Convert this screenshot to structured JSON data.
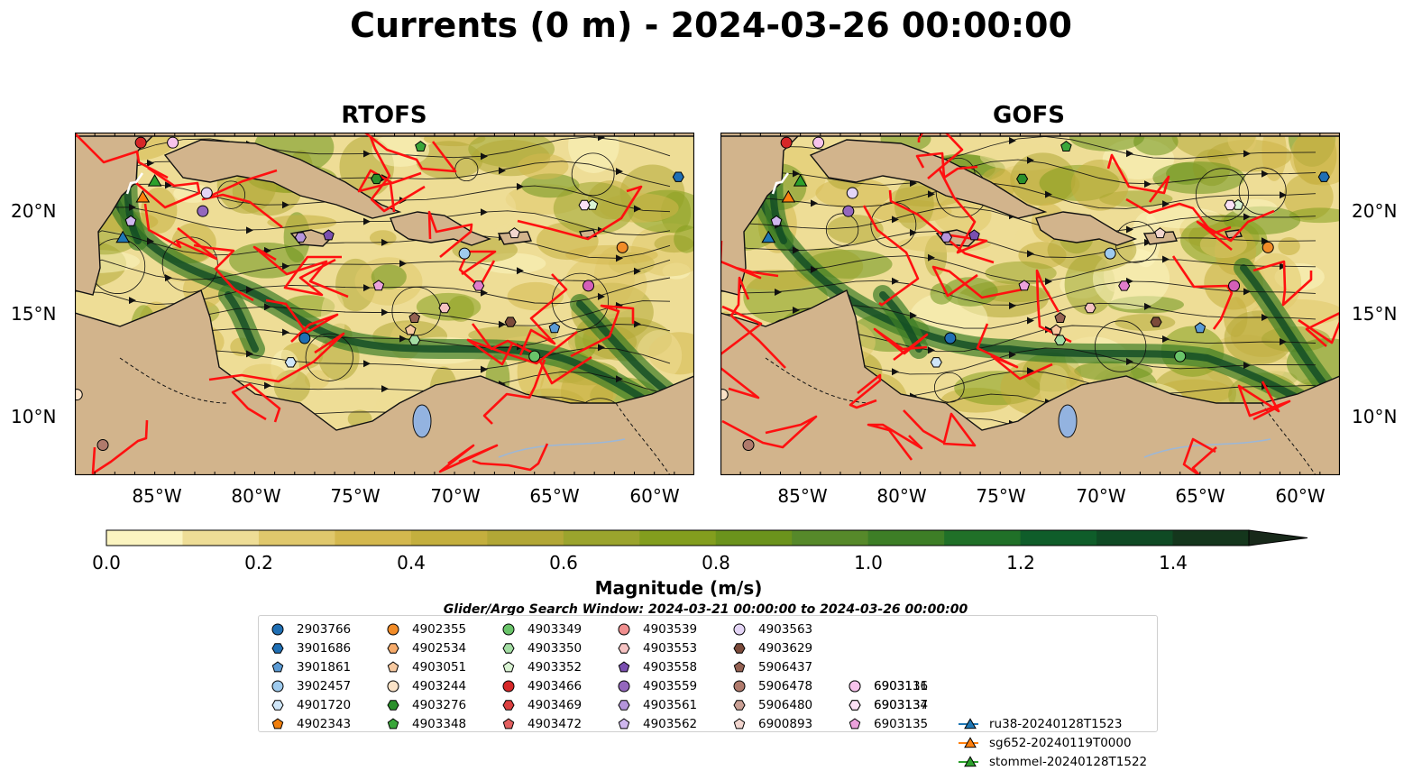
{
  "title": "Currents (0 m) - 2024-03-26 00:00:00",
  "panels": [
    {
      "title": "RTOFS"
    },
    {
      "title": "GOFS"
    }
  ],
  "axes": {
    "lat_labels": [
      "20°N",
      "15°N",
      "10°N"
    ],
    "lon_labels": [
      "85°W",
      "80°W",
      "75°W",
      "70°W",
      "65°W",
      "60°W"
    ],
    "lon_range": [
      -89,
      -58
    ],
    "lat_range": [
      7,
      24
    ]
  },
  "colorbar": {
    "label": "Magnitude (m/s)",
    "ticks": [
      "0.0",
      "0.2",
      "0.4",
      "0.6",
      "0.8",
      "1.0",
      "1.2",
      "1.4"
    ],
    "range": [
      0,
      1.5
    ],
    "colors": [
      "#fbf4c0",
      "#eedd96",
      "#e0c86c",
      "#d4b84e",
      "#c4af3e",
      "#b2a736",
      "#9ba42d",
      "#839e1e",
      "#6b931c",
      "#56892a",
      "#3d7e26",
      "#207028",
      "#0f5d2a",
      "#0f4a24",
      "#14361c",
      "#18291a"
    ],
    "extend": "max"
  },
  "legend": {
    "title": "Glider/Argo Search Window: 2024-03-21 00:00:00 to 2024-03-26 00:00:00",
    "items": [
      {
        "label": "2903766",
        "marker": "circle",
        "color": "#1f6fb4"
      },
      {
        "label": "3901686",
        "marker": "hexagon",
        "color": "#1f6fb4"
      },
      {
        "label": "3901861",
        "marker": "pentagon",
        "color": "#5b9bd5"
      },
      {
        "label": "3902457",
        "marker": "circle",
        "color": "#9fcbee"
      },
      {
        "label": "4901720",
        "marker": "hexagon",
        "color": "#cfe6f8"
      },
      {
        "label": "4902343",
        "marker": "pentagon",
        "color": "#f07f0d"
      },
      {
        "label": "4902355",
        "marker": "circle",
        "color": "#f28c28"
      },
      {
        "label": "4902534",
        "marker": "hexagon",
        "color": "#f6ab6b"
      },
      {
        "label": "4903051",
        "marker": "pentagon",
        "color": "#f7c9a0"
      },
      {
        "label": "4903244",
        "marker": "circle",
        "color": "#fbe3c8"
      },
      {
        "label": "4903276",
        "marker": "hexagon",
        "color": "#2a8f2a"
      },
      {
        "label": "4903348",
        "marker": "pentagon",
        "color": "#3aa63a"
      },
      {
        "label": "4903349",
        "marker": "circle",
        "color": "#6ac46a"
      },
      {
        "label": "4903350",
        "marker": "hexagon",
        "color": "#a3dda3"
      },
      {
        "label": "4903352",
        "marker": "pentagon",
        "color": "#d9f3d3"
      },
      {
        "label": "4903466",
        "marker": "circle",
        "color": "#d62728"
      },
      {
        "label": "4903469",
        "marker": "hexagon",
        "color": "#dc4040"
      },
      {
        "label": "4903472",
        "marker": "pentagon",
        "color": "#e36060"
      },
      {
        "label": "4903539",
        "marker": "circle",
        "color": "#f08f8f"
      },
      {
        "label": "4903553",
        "marker": "hexagon",
        "color": "#f6c3c3"
      },
      {
        "label": "4903558",
        "marker": "pentagon",
        "color": "#7a4fb0"
      },
      {
        "label": "4903559",
        "marker": "circle",
        "color": "#9467bd"
      },
      {
        "label": "4903561",
        "marker": "hexagon",
        "color": "#b595dc"
      },
      {
        "label": "4903562",
        "marker": "pentagon",
        "color": "#cfb7ee"
      },
      {
        "label": "4903563",
        "marker": "circle",
        "color": "#e4d5f6"
      },
      {
        "label": "4903629",
        "marker": "hexagon",
        "color": "#7b4a3a"
      },
      {
        "label": "5906437",
        "marker": "pentagon",
        "color": "#946152"
      },
      {
        "label": "5906478",
        "marker": "circle",
        "color": "#b07a6c"
      },
      {
        "label": "5906480",
        "marker": "hexagon",
        "color": "#c99f94"
      },
      {
        "label": "6900893",
        "marker": "pentagon",
        "color": "#f2d6cf"
      },
      {
        "label": "6903111",
        "marker": "circle",
        "color": "#d45fb8"
      },
      {
        "label": "6903134",
        "marker": "hexagon",
        "color": "#e07ccb"
      },
      {
        "label": "6903135",
        "marker": "pentagon",
        "color": "#eca2dc"
      },
      {
        "label": "6903136",
        "marker": "circle",
        "color": "#f7c3ec"
      },
      {
        "label": "6903137",
        "marker": "hexagon",
        "color": "#fbe0f5"
      },
      {
        "label": "ru38-20240128T1523",
        "marker": "triangle-line",
        "color": "#1f77b4"
      },
      {
        "label": "sg652-20240119T0000",
        "marker": "triangle-line",
        "color": "#ff7f0e"
      },
      {
        "label": "stommel-20240128T1522",
        "marker": "triangle-line",
        "color": "#2ca02c"
      }
    ]
  },
  "platforms": [
    {
      "id": "2903766",
      "lon": -77.5,
      "lat": 13.8
    },
    {
      "id": "3901686",
      "lon": -58.8,
      "lat": 21.8
    },
    {
      "id": "3901861",
      "lon": -65.0,
      "lat": 14.3
    },
    {
      "id": "3902457",
      "lon": -69.5,
      "lat": 18.0
    },
    {
      "id": "4901720",
      "lon": -78.2,
      "lat": 12.6
    },
    {
      "id": "4902355",
      "lon": -61.6,
      "lat": 18.3
    },
    {
      "id": "4903051",
      "lon": -72.2,
      "lat": 14.2
    },
    {
      "id": "4903244",
      "lon": -88.9,
      "lat": 11.0
    },
    {
      "id": "4903276",
      "lon": -73.9,
      "lat": 21.7
    },
    {
      "id": "4903348",
      "lon": -71.7,
      "lat": 23.3
    },
    {
      "id": "4903349",
      "lon": -66.0,
      "lat": 12.9
    },
    {
      "id": "4903350",
      "lon": -72.0,
      "lat": 13.7
    },
    {
      "id": "4903352",
      "lon": -63.1,
      "lat": 20.4
    },
    {
      "id": "4903466",
      "lon": -85.7,
      "lat": 23.5
    },
    {
      "id": "4903553",
      "lon": -70.5,
      "lat": 15.3
    },
    {
      "id": "4903558",
      "lon": -76.3,
      "lat": 18.9
    },
    {
      "id": "4903559",
      "lon": -82.6,
      "lat": 20.1
    },
    {
      "id": "4903561",
      "lon": -77.7,
      "lat": 18.8
    },
    {
      "id": "4903562",
      "lon": -86.2,
      "lat": 19.6
    },
    {
      "id": "4903563",
      "lon": -82.4,
      "lat": 21.0
    },
    {
      "id": "4903629",
      "lon": -67.2,
      "lat": 14.6
    },
    {
      "id": "5906437",
      "lon": -72.0,
      "lat": 14.8
    },
    {
      "id": "5906478",
      "lon": -87.6,
      "lat": 8.5
    },
    {
      "id": "6900893",
      "lon": -67.0,
      "lat": 19.0
    },
    {
      "id": "6903111",
      "lon": -63.3,
      "lat": 16.4
    },
    {
      "id": "6903134",
      "lon": -68.8,
      "lat": 16.4
    },
    {
      "id": "6903135",
      "lon": -73.8,
      "lat": 16.4
    },
    {
      "id": "6903136",
      "lon": -84.1,
      "lat": 23.5
    },
    {
      "id": "6903137",
      "lon": -63.5,
      "lat": 20.4
    }
  ],
  "gliders": [
    {
      "id": "ru38-20240128T1523",
      "lon": -86.6,
      "lat": 18.8,
      "color": "#1f77b4"
    },
    {
      "id": "sg652-20240119T0000",
      "lon": -85.6,
      "lat": 20.8,
      "color": "#ff7f0e"
    },
    {
      "id": "stommel-20240128T1522",
      "lon": -85.0,
      "lat": 21.6,
      "color": "#2ca02c"
    }
  ]
}
